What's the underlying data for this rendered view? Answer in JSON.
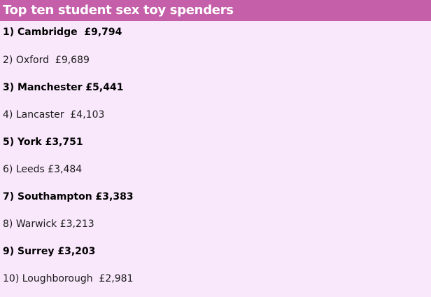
{
  "header": {
    "title": "Top ten student sex toy spenders"
  },
  "items": [
    "1) Cambridge  £9,794",
    "2) Oxford  £9,689",
    "3) Manchester £5,441",
    "4) Lancaster  £4,103",
    "5) York £3,751",
    "6) Leeds £3,484",
    "7) Southampton £3,383",
    "8) Warwick £3,213",
    "9) Surrey £3,203",
    "10) Loughborough  £2,981"
  ]
}
